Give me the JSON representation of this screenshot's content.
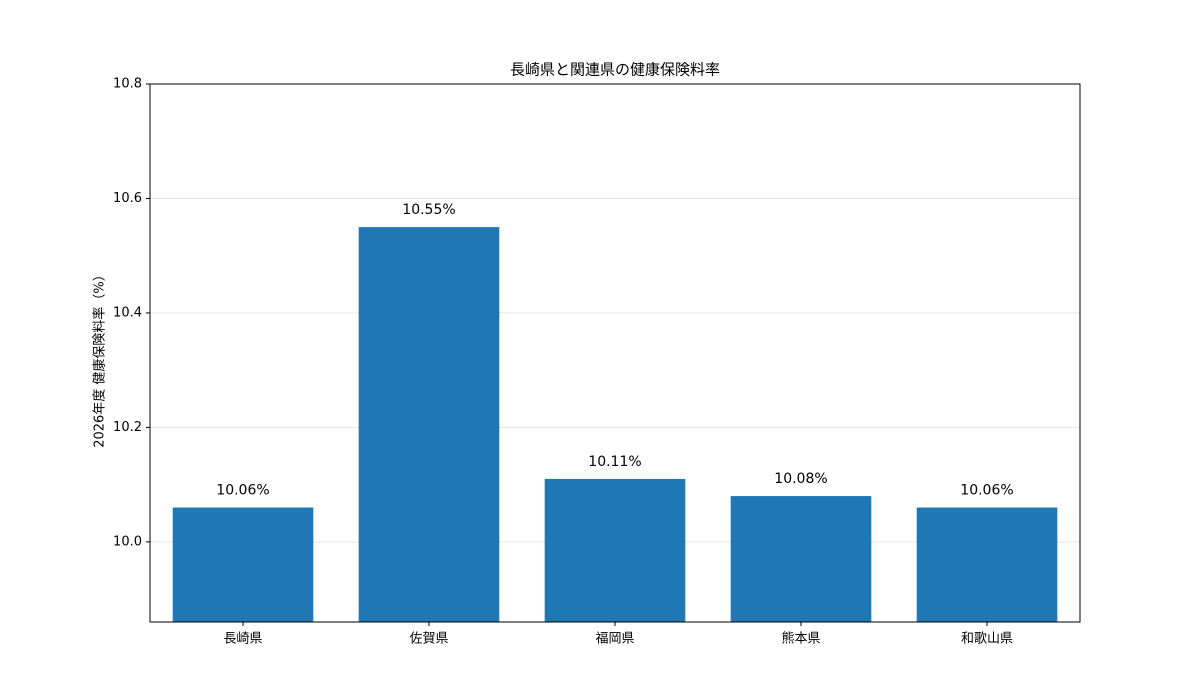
{
  "chart_data": {
    "type": "bar",
    "title": "長崎県と関連県の健康保険料率",
    "y_label": "2026年度 健康保険料率（%）",
    "categories": [
      "長崎県",
      "佐賀県",
      "福岡県",
      "熊本県",
      "和歌山県"
    ],
    "values": [
      10.06,
      10.55,
      10.11,
      10.08,
      10.06
    ],
    "value_labels": [
      "10.06%",
      "10.55%",
      "10.11%",
      "10.08%",
      "10.06%"
    ],
    "color": "#1f77b4",
    "ylim": [
      9.86,
      10.8
    ],
    "yticks": [
      {
        "value": 10,
        "label": "10.0"
      },
      10.2,
      10.4,
      10.6,
      10.8
    ],
    "grid": true
  }
}
